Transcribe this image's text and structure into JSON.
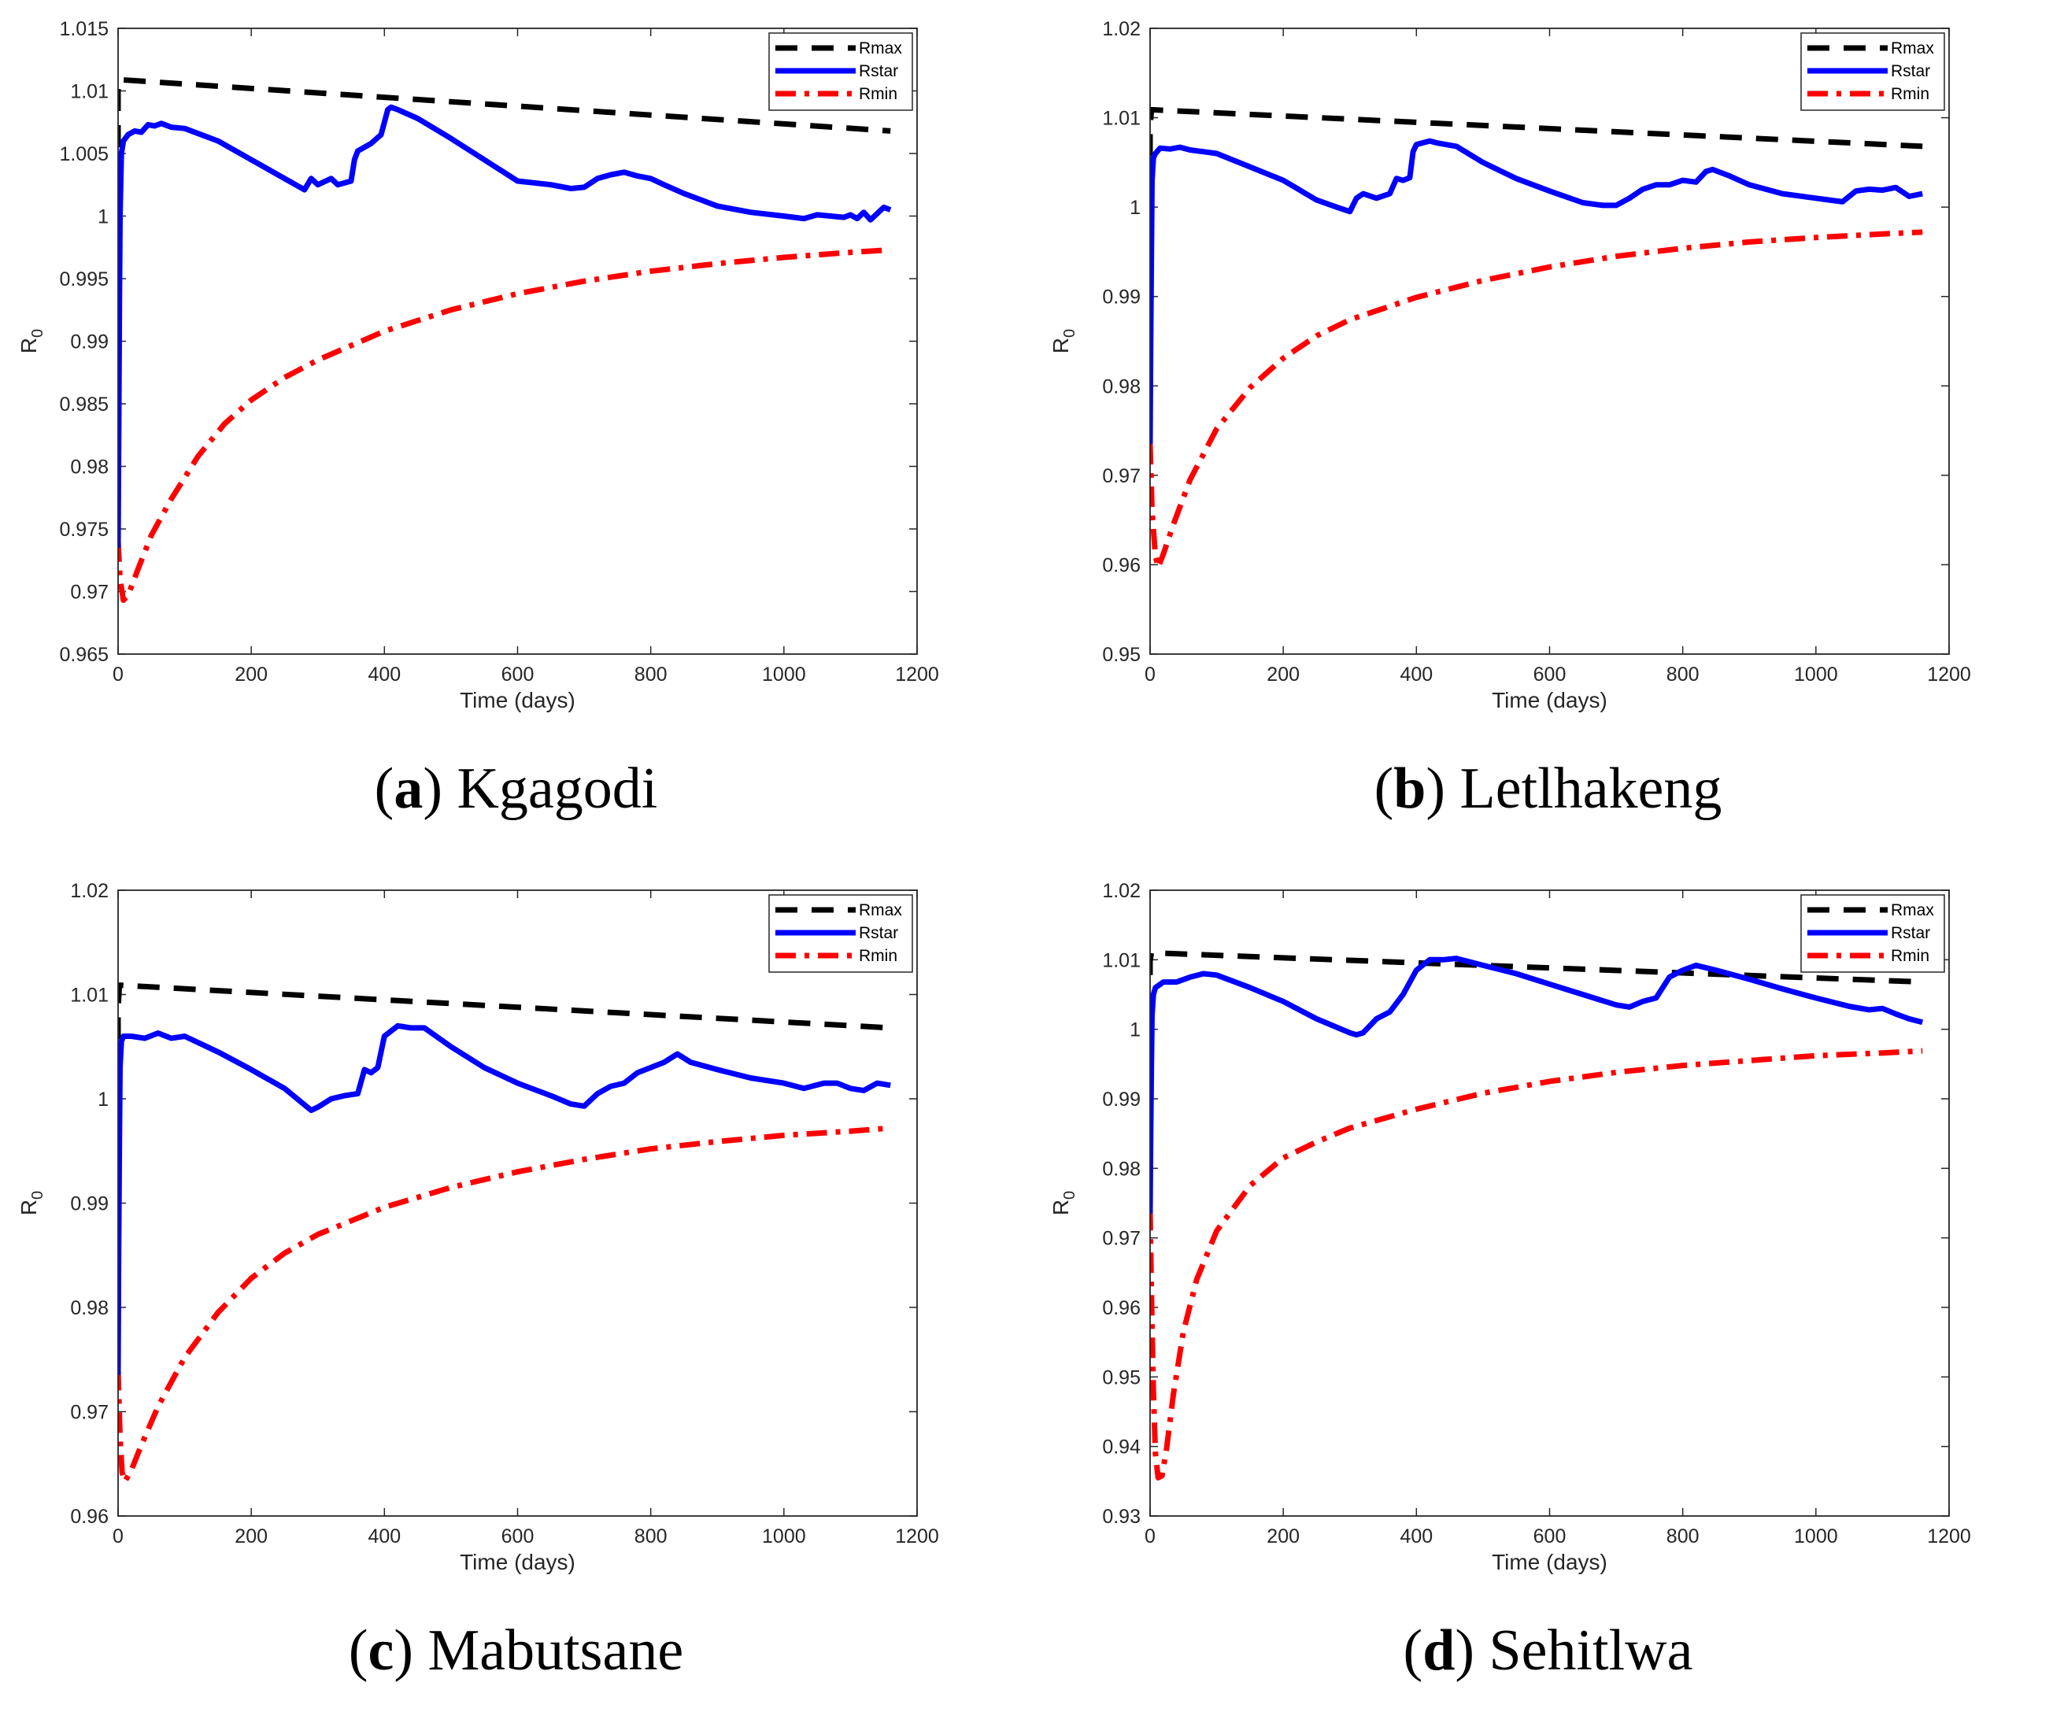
{
  "chart_data": [
    {
      "type": "line",
      "panel_letter": "a",
      "title": "Kgagodi",
      "xlabel": "Time (days)",
      "ylabel_base": "R",
      "ylabel_sub": "0",
      "xlim": [
        0,
        1200
      ],
      "ylim": [
        0.965,
        1.015
      ],
      "xticks": [
        0,
        200,
        400,
        600,
        800,
        1000,
        1200
      ],
      "yticks": [
        0.965,
        0.97,
        0.975,
        0.98,
        0.985,
        0.99,
        0.995,
        1,
        1.005,
        1.01,
        1.015
      ],
      "ytick_labels": [
        "0.965",
        "0.97",
        "0.975",
        "0.98",
        "0.985",
        "0.99",
        "0.995",
        "1",
        "1.005",
        "1.01",
        "1.015"
      ],
      "legend": [
        "Rmax",
        "Rstar",
        "Rmin"
      ],
      "legend_position": "top-right",
      "series": [
        {
          "name": "Rmax",
          "color": "#000000",
          "style": "dashed",
          "x": [
            0,
            0,
            2,
            1160
          ],
          "y": [
            1.0055,
            1.0108,
            1.0109,
            1.0068
          ]
        },
        {
          "name": "Rstar",
          "color": "#0000ff",
          "style": "solid",
          "x": [
            0,
            1,
            2,
            3,
            5,
            8,
            15,
            25,
            35,
            45,
            55,
            65,
            80,
            100,
            150,
            200,
            250,
            280,
            290,
            300,
            320,
            330,
            350,
            355,
            360,
            380,
            395,
            405,
            410,
            420,
            450,
            500,
            550,
            600,
            650,
            680,
            700,
            720,
            740,
            760,
            780,
            800,
            820,
            850,
            900,
            950,
            1000,
            1030,
            1050,
            1070,
            1090,
            1100,
            1110,
            1120,
            1130,
            1140,
            1150,
            1160
          ],
          "y": [
            0.9735,
            0.982,
            0.993,
            1.0,
            1.005,
            1.006,
            1.0065,
            1.0068,
            1.0067,
            1.0073,
            1.0072,
            1.0074,
            1.0071,
            1.007,
            1.006,
            1.0045,
            1.003,
            1.0021,
            1.003,
            1.0025,
            1.003,
            1.0025,
            1.0028,
            1.0045,
            1.0052,
            1.0058,
            1.0065,
            1.0085,
            1.0087,
            1.0085,
            1.0078,
            1.0062,
            1.0045,
            1.0028,
            1.0025,
            1.0022,
            1.0023,
            1.003,
            1.0033,
            1.0035,
            1.0032,
            1.003,
            1.0025,
            1.0018,
            1.0008,
            1.0003,
            1.0,
            0.9998,
            1.0001,
            1.0,
            0.9999,
            1.0001,
            0.9998,
            1.0003,
            0.9997,
            1.0002,
            1.0007,
            1.0005
          ]
        },
        {
          "name": "Rmin",
          "color": "#ff0000",
          "style": "dashdot",
          "x": [
            0,
            3,
            8,
            15,
            30,
            50,
            80,
            120,
            160,
            200,
            250,
            300,
            400,
            500,
            600,
            700,
            800,
            900,
            1000,
            1100,
            1160
          ],
          "y": [
            0.974,
            0.971,
            0.9693,
            0.9697,
            0.9718,
            0.9745,
            0.9774,
            0.9808,
            0.9834,
            0.9853,
            0.9871,
            0.9885,
            0.9908,
            0.9925,
            0.9938,
            0.9948,
            0.9956,
            0.9962,
            0.9967,
            0.9971,
            0.9973
          ]
        }
      ]
    },
    {
      "type": "line",
      "panel_letter": "b",
      "title": "Letlhakeng",
      "xlabel": "Time (days)",
      "ylabel_base": "R",
      "ylabel_sub": "0",
      "xlim": [
        0,
        1200
      ],
      "ylim": [
        0.95,
        1.02
      ],
      "xticks": [
        0,
        200,
        400,
        600,
        800,
        1000,
        1200
      ],
      "yticks": [
        0.95,
        0.96,
        0.97,
        0.98,
        0.99,
        1,
        1.01,
        1.02
      ],
      "ytick_labels": [
        "0.95",
        "0.96",
        "0.97",
        "0.98",
        "0.99",
        "1",
        "1.01",
        "1.02"
      ],
      "legend": [
        "Rmax",
        "Rstar",
        "Rmin"
      ],
      "legend_position": "top-right",
      "series": [
        {
          "name": "Rmax",
          "color": "#000000",
          "style": "dashed",
          "x": [
            0,
            0,
            2,
            1160
          ],
          "y": [
            1.0057,
            1.0088,
            1.0109,
            1.0068
          ]
        },
        {
          "name": "Rstar",
          "color": "#0000ff",
          "style": "solid",
          "x": [
            0,
            1,
            2,
            3,
            5,
            8,
            15,
            30,
            45,
            60,
            80,
            100,
            150,
            200,
            250,
            280,
            300,
            310,
            320,
            340,
            360,
            370,
            380,
            390,
            395,
            400,
            410,
            420,
            430,
            460,
            500,
            550,
            600,
            650,
            680,
            700,
            720,
            740,
            760,
            780,
            800,
            820,
            835,
            845,
            870,
            900,
            950,
            1000,
            1020,
            1040,
            1050,
            1060,
            1080,
            1100,
            1120,
            1140,
            1160
          ],
          "y": [
            0.9735,
            0.985,
            0.995,
            1.003,
            1.0055,
            1.006,
            1.0066,
            1.0065,
            1.0067,
            1.0064,
            1.0062,
            1.006,
            1.0045,
            1.003,
            1.0008,
            1.0,
            0.9995,
            1.001,
            1.0015,
            1.001,
            1.0015,
            1.0032,
            1.003,
            1.0033,
            1.0062,
            1.007,
            1.0072,
            1.0074,
            1.0072,
            1.0068,
            1.005,
            1.0032,
            1.0018,
            1.0005,
            1.0002,
            1.0002,
            1.001,
            1.002,
            1.0025,
            1.0025,
            1.003,
            1.0028,
            1.004,
            1.0042,
            1.0035,
            1.0025,
            1.0015,
            1.001,
            1.0008,
            1.0006,
            1.0012,
            1.0018,
            1.002,
            1.0019,
            1.0022,
            1.0012,
            1.0015
          ]
        },
        {
          "name": "Rmin",
          "color": "#ff0000",
          "style": "dashdot",
          "x": [
            0,
            3,
            8,
            12,
            20,
            35,
            60,
            100,
            150,
            200,
            250,
            300,
            400,
            500,
            600,
            700,
            800,
            900,
            1000,
            1100,
            1160
          ],
          "y": [
            0.9735,
            0.966,
            0.961,
            0.9597,
            0.9612,
            0.9645,
            0.9695,
            0.9752,
            0.9798,
            0.9831,
            0.9856,
            0.9874,
            0.9899,
            0.9918,
            0.9933,
            0.9945,
            0.9954,
            0.9961,
            0.9966,
            0.997,
            0.9972
          ]
        }
      ]
    },
    {
      "type": "line",
      "panel_letter": "c",
      "title": "Mabutsane",
      "xlabel": "Time (days)",
      "ylabel_base": "R",
      "ylabel_sub": "0",
      "xlim": [
        0,
        1200
      ],
      "ylim": [
        0.96,
        1.02
      ],
      "xticks": [
        0,
        200,
        400,
        600,
        800,
        1000,
        1200
      ],
      "yticks": [
        0.96,
        0.97,
        0.98,
        0.99,
        1,
        1.01,
        1.02
      ],
      "ytick_labels": [
        "0.96",
        "0.97",
        "0.98",
        "0.99",
        "1",
        "1.01",
        "1.02"
      ],
      "legend": [
        "Rmax",
        "Rstar",
        "Rmin"
      ],
      "legend_position": "top-right",
      "series": [
        {
          "name": "Rmax",
          "color": "#000000",
          "style": "dashed",
          "x": [
            0,
            0,
            2,
            1160
          ],
          "y": [
            1.0057,
            1.0086,
            1.0109,
            1.0068
          ]
        },
        {
          "name": "Rstar",
          "color": "#0000ff",
          "style": "solid",
          "x": [
            0,
            1,
            2,
            3,
            5,
            8,
            20,
            40,
            60,
            80,
            100,
            150,
            200,
            250,
            290,
            300,
            320,
            340,
            360,
            370,
            380,
            390,
            400,
            410,
            420,
            440,
            460,
            500,
            550,
            600,
            650,
            680,
            700,
            720,
            740,
            760,
            780,
            800,
            820,
            840,
            860,
            900,
            950,
            1000,
            1030,
            1060,
            1080,
            1100,
            1120,
            1140,
            1160
          ],
          "y": [
            0.9735,
            0.986,
            0.996,
            1.003,
            1.0055,
            1.006,
            1.006,
            1.0058,
            1.0063,
            1.0058,
            1.006,
            1.0045,
            1.0028,
            1.001,
            0.9989,
            0.9992,
            1.0,
            1.0003,
            1.0005,
            1.0028,
            1.0025,
            1.003,
            1.006,
            1.0065,
            1.007,
            1.0068,
            1.0068,
            1.005,
            1.003,
            1.0015,
            1.0003,
            0.9995,
            0.9993,
            1.0005,
            1.0012,
            1.0015,
            1.0025,
            1.003,
            1.0035,
            1.0043,
            1.0035,
            1.0028,
            1.002,
            1.0015,
            1.001,
            1.0015,
            1.0015,
            1.001,
            1.0008,
            1.0015,
            1.0013
          ]
        },
        {
          "name": "Rmin",
          "color": "#ff0000",
          "style": "dashdot",
          "x": [
            0,
            3,
            6,
            10,
            20,
            35,
            60,
            100,
            150,
            200,
            250,
            300,
            400,
            500,
            600,
            700,
            800,
            900,
            1000,
            1100,
            1160
          ],
          "y": [
            0.974,
            0.9675,
            0.9642,
            0.9633,
            0.9644,
            0.9668,
            0.9705,
            0.9752,
            0.9795,
            0.9828,
            0.9852,
            0.987,
            0.9896,
            0.9915,
            0.993,
            0.9942,
            0.9952,
            0.9959,
            0.9965,
            0.9969,
            0.9972
          ]
        }
      ]
    },
    {
      "type": "line",
      "panel_letter": "d",
      "title": "Sehitlwa",
      "xlabel": "Time (days)",
      "ylabel_base": "R",
      "ylabel_sub": "0",
      "xlim": [
        0,
        1200
      ],
      "ylim": [
        0.93,
        1.02
      ],
      "xticks": [
        0,
        200,
        400,
        600,
        800,
        1000,
        1200
      ],
      "yticks": [
        0.93,
        0.94,
        0.95,
        0.96,
        0.97,
        0.98,
        0.99,
        1,
        1.01,
        1.02
      ],
      "ytick_labels": [
        "0.93",
        "0.94",
        "0.95",
        "0.96",
        "0.97",
        "0.98",
        "0.99",
        "1",
        "1.01",
        "1.02"
      ],
      "legend": [
        "Rmax",
        "Rstar",
        "Rmin"
      ],
      "legend_position": "top-right",
      "series": [
        {
          "name": "Rmax",
          "color": "#000000",
          "style": "dashed",
          "x": [
            0,
            0,
            2,
            1160
          ],
          "y": [
            1.0078,
            1.0098,
            1.011,
            1.0068
          ]
        },
        {
          "name": "Rstar",
          "color": "#0000ff",
          "style": "solid",
          "x": [
            0,
            1,
            2,
            3,
            5,
            8,
            20,
            40,
            60,
            80,
            100,
            150,
            200,
            250,
            300,
            310,
            320,
            340,
            360,
            380,
            400,
            420,
            440,
            460,
            500,
            550,
            600,
            650,
            700,
            720,
            740,
            760,
            780,
            800,
            820,
            850,
            900,
            950,
            1000,
            1050,
            1080,
            1100,
            1120,
            1140,
            1160
          ],
          "y": [
            0.9735,
            0.985,
            0.995,
            1.002,
            1.005,
            1.006,
            1.0068,
            1.0068,
            1.0075,
            1.008,
            1.0078,
            1.006,
            1.004,
            1.0015,
            0.9995,
            0.9992,
            0.9995,
            1.0015,
            1.0025,
            1.005,
            1.0085,
            1.01,
            1.01,
            1.0102,
            1.0092,
            1.008,
            1.0065,
            1.005,
            1.0035,
            1.0032,
            1.004,
            1.0045,
            1.0075,
            1.0085,
            1.0092,
            1.0085,
            1.0072,
            1.0058,
            1.0045,
            1.0033,
            1.0028,
            1.003,
            1.0022,
            1.0015,
            1.001
          ]
        },
        {
          "name": "Rmin",
          "color": "#ff0000",
          "style": "dashdot",
          "x": [
            0,
            2,
            5,
            8,
            12,
            18,
            25,
            35,
            50,
            70,
            100,
            150,
            200,
            250,
            300,
            400,
            500,
            600,
            700,
            800,
            900,
            1000,
            1100,
            1160
          ],
          "y": [
            0.974,
            0.962,
            0.948,
            0.939,
            0.9355,
            0.9358,
            0.9398,
            0.9475,
            0.9565,
            0.964,
            0.971,
            0.9775,
            0.9815,
            0.9838,
            0.9858,
            0.9885,
            0.9908,
            0.9925,
            0.9938,
            0.9948,
            0.9955,
            0.9962,
            0.9966,
            0.9969
          ]
        }
      ]
    }
  ]
}
